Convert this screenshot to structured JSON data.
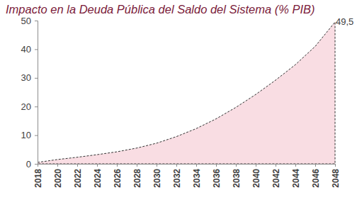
{
  "chart_data": {
    "type": "area",
    "title": "Impacto en la Deuda Pública del Saldo del Sistema (% PIB)",
    "x": [
      2018,
      2020,
      2022,
      2024,
      2026,
      2028,
      2030,
      2032,
      2034,
      2036,
      2038,
      2040,
      2042,
      2044,
      2046,
      2048
    ],
    "series": [
      {
        "name": "Impacto en la Deuda Pública del Saldo del Sistema",
        "color": "#f9dde3",
        "line_style": "dashed",
        "values": [
          0.5,
          1.5,
          2.3,
          3.2,
          4.2,
          5.5,
          7.2,
          9.5,
          12.3,
          15.7,
          19.7,
          24.2,
          29.2,
          34.6,
          41.0,
          49.5
        ],
        "value_labels": [
          null,
          null,
          null,
          null,
          null,
          null,
          null,
          null,
          null,
          null,
          null,
          null,
          null,
          null,
          null,
          "49,5"
        ]
      }
    ],
    "xlim": [
      2018,
      2048
    ],
    "xticks": [
      2018,
      2020,
      2022,
      2024,
      2026,
      2028,
      2030,
      2032,
      2034,
      2036,
      2038,
      2040,
      2042,
      2044,
      2046,
      2048
    ],
    "ylim": [
      0,
      50
    ],
    "yticks": [
      0,
      10,
      20,
      30,
      40,
      50
    ],
    "grid": false,
    "data_labels": true
  }
}
